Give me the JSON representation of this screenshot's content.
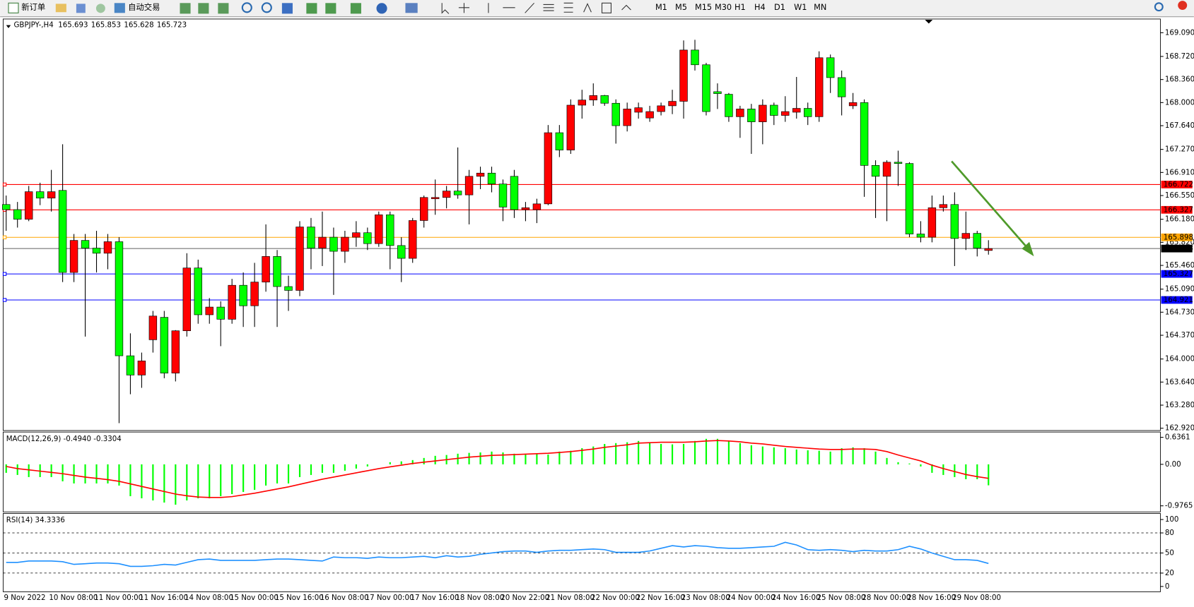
{
  "toolbar": {
    "new_order": "新订单",
    "auto_trading": "自动交易",
    "timeframes": [
      "M1",
      "M5",
      "M15",
      "M30",
      "H1",
      "H4",
      "D1",
      "W1",
      "MN"
    ]
  },
  "chart_data": [
    {
      "type": "candlestick",
      "title": "GBPJPY-,H4",
      "last_bar": [
        165.693,
        165.853,
        165.628,
        165.723
      ],
      "up_color": "#ff0000",
      "down_color": "#00ff00",
      "categories": [
        "9 Nov 2022",
        null,
        null,
        null,
        "10 Nov 08:00",
        null,
        null,
        null,
        "11 Nov 00:00",
        null,
        null,
        null,
        "11 Nov 16:00",
        null,
        null,
        null,
        "14 Nov 08:00",
        null,
        null,
        null,
        "15 Nov 00:00",
        null,
        null,
        null,
        "15 Nov 16:00",
        null,
        null,
        null,
        "16 Nov 08:00",
        null,
        null,
        null,
        "17 Nov 00:00",
        null,
        null,
        null,
        "17 Nov 16:00",
        null,
        null,
        null,
        "18 Nov 08:00",
        null,
        null,
        null,
        "20 Nov 22:00",
        null,
        null,
        null,
        "21 Nov 08:00",
        null,
        null,
        null,
        "22 Nov 00:00",
        null,
        null,
        null,
        "22 Nov 16:00",
        null,
        null,
        null,
        "23 Nov 08:00",
        null,
        null,
        null,
        "24 Nov 00:00",
        null,
        null,
        null,
        "24 Nov 16:00",
        null,
        null,
        null,
        "25 Nov 08:00",
        null,
        null,
        null,
        "28 Nov 00:00",
        null,
        null,
        null,
        "28 Nov 16:00",
        null,
        null,
        null,
        "29 Nov 08:00",
        null,
        null,
        null
      ],
      "open": [
        166.41,
        166.33,
        166.18,
        166.61,
        166.51,
        166.63,
        165.35,
        165.85,
        165.73,
        165.65,
        165.83,
        164.05,
        163.75,
        164.3,
        164.65,
        163.78,
        164.44,
        165.42,
        164.69,
        164.81,
        164.62,
        165.15,
        164.83,
        165.2,
        165.6,
        165.13,
        165.07,
        166.06,
        165.73,
        165.9,
        165.68,
        165.9,
        165.97,
        165.8,
        166.25,
        165.77,
        165.57,
        166.16,
        166.5,
        166.52,
        166.62,
        166.56,
        166.85,
        166.9,
        166.73,
        166.85,
        166.33,
        166.33,
        166.42,
        167.53,
        167.26,
        167.96,
        168.04,
        168.11,
        167.99,
        167.64,
        167.85,
        167.76,
        167.86,
        167.95,
        168.02,
        168.82,
        168.59,
        168.17,
        168.13,
        167.78,
        167.9,
        167.7,
        167.96,
        167.8,
        167.85,
        167.91,
        167.78,
        168.7,
        168.39,
        167.95,
        168.0,
        167.02,
        166.85,
        167.07,
        167.05,
        165.95,
        165.9,
        166.36,
        166.41,
        165.88,
        165.96,
        165.693
      ],
      "high": [
        166.55,
        166.45,
        166.7,
        166.75,
        166.95,
        167.35,
        165.95,
        165.95,
        166.0,
        165.95,
        165.9,
        164.4,
        164.1,
        164.75,
        164.75,
        164.45,
        165.65,
        165.55,
        164.95,
        164.9,
        165.25,
        165.35,
        165.5,
        166.1,
        165.7,
        165.3,
        166.15,
        166.2,
        166.3,
        166.05,
        166.0,
        166.15,
        166.05,
        166.3,
        166.3,
        165.9,
        166.2,
        166.55,
        166.8,
        166.7,
        167.3,
        166.95,
        167.0,
        167.0,
        166.8,
        166.95,
        166.45,
        166.5,
        167.65,
        167.65,
        168.05,
        168.2,
        168.3,
        168.12,
        168.05,
        168.0,
        168.0,
        167.95,
        168.0,
        168.2,
        168.97,
        168.98,
        168.62,
        168.3,
        168.15,
        167.95,
        167.98,
        168.05,
        168.0,
        168.1,
        168.4,
        168.0,
        168.8,
        168.75,
        168.5,
        168.15,
        168.05,
        167.1,
        167.1,
        167.25,
        167.07,
        166.15,
        166.55,
        166.55,
        166.6,
        166.3,
        166.0,
        165.853
      ],
      "low": [
        166.0,
        166.05,
        166.15,
        166.4,
        166.3,
        165.2,
        165.2,
        164.35,
        165.35,
        165.4,
        163.0,
        163.45,
        163.55,
        164.1,
        163.7,
        163.65,
        164.35,
        164.55,
        164.55,
        164.2,
        164.55,
        164.5,
        164.5,
        165.05,
        164.5,
        164.75,
        164.98,
        165.4,
        165.45,
        165.0,
        165.5,
        165.75,
        165.7,
        165.75,
        165.4,
        165.2,
        165.5,
        166.05,
        166.25,
        166.35,
        166.5,
        166.1,
        166.65,
        166.6,
        166.15,
        166.2,
        166.15,
        166.12,
        166.4,
        167.15,
        167.2,
        167.75,
        167.95,
        167.95,
        167.36,
        167.55,
        167.75,
        167.7,
        167.8,
        167.82,
        167.75,
        168.5,
        167.8,
        167.9,
        167.7,
        167.45,
        167.2,
        167.35,
        167.65,
        167.7,
        167.75,
        167.65,
        167.7,
        168.15,
        167.8,
        167.9,
        166.53,
        166.2,
        166.15,
        166.7,
        165.9,
        165.82,
        165.82,
        166.3,
        165.45,
        165.7,
        165.6,
        165.628
      ],
      "close": [
        166.33,
        166.18,
        166.61,
        166.51,
        166.61,
        165.35,
        165.85,
        165.73,
        165.65,
        165.83,
        164.05,
        163.75,
        163.97,
        164.67,
        163.78,
        164.44,
        165.42,
        164.69,
        164.81,
        164.62,
        165.15,
        164.83,
        165.2,
        165.6,
        165.13,
        165.07,
        166.06,
        165.73,
        165.9,
        165.68,
        165.9,
        165.97,
        165.8,
        166.25,
        165.77,
        165.57,
        166.16,
        166.52,
        166.52,
        166.62,
        166.56,
        166.85,
        166.9,
        166.73,
        166.37,
        166.33,
        166.36,
        166.42,
        167.53,
        167.26,
        167.96,
        168.04,
        168.11,
        167.99,
        167.64,
        167.9,
        167.92,
        167.86,
        167.95,
        168.02,
        168.82,
        168.59,
        167.86,
        168.14,
        167.78,
        167.9,
        167.7,
        167.96,
        167.8,
        167.86,
        167.91,
        167.78,
        168.7,
        168.39,
        168.09,
        168.0,
        167.02,
        166.85,
        167.07,
        167.05,
        165.95,
        165.9,
        166.36,
        166.41,
        165.88,
        165.96,
        165.73,
        165.723
      ],
      "ylim": [
        162.884,
        169.292
      ],
      "yticks": [
        {
          "value": 169.09,
          "label": "169.090"
        },
        {
          "value": 168.72,
          "label": "168.720"
        },
        {
          "value": 168.36,
          "label": "168.360"
        },
        {
          "value": 168.0,
          "label": "168.000"
        },
        {
          "value": 167.64,
          "label": "167.640"
        },
        {
          "value": 167.27,
          "label": "167.270"
        },
        {
          "value": 166.91,
          "label": "166.910"
        },
        {
          "value": 166.55,
          "label": "166.550"
        },
        {
          "value": 166.18,
          "label": "166.180"
        },
        {
          "value": 165.82,
          "label": "165.820"
        },
        {
          "value": 165.46,
          "label": "165.460"
        },
        {
          "value": 165.09,
          "label": "165.090"
        },
        {
          "value": 164.73,
          "label": "164.730"
        },
        {
          "value": 164.37,
          "label": "164.370"
        },
        {
          "value": 164.0,
          "label": "164.000"
        },
        {
          "value": 163.64,
          "label": "163.640"
        },
        {
          "value": 163.28,
          "label": "163.280"
        },
        {
          "value": 162.92,
          "label": "162.920"
        }
      ],
      "hlines": [
        {
          "value": 166.722,
          "color": "#ff0000"
        },
        {
          "value": 166.327,
          "color": "#ff0000"
        },
        {
          "value": 165.898,
          "color": "#ffa500"
        },
        {
          "value": 165.327,
          "color": "#0000ff"
        },
        {
          "value": 164.921,
          "color": "#0000ff"
        },
        {
          "value": 165.723,
          "color": "#000000"
        }
      ]
    },
    {
      "type": "macd",
      "title": "MACD(12,26,9) -0.4940 -0.3304",
      "color": "#00ff00",
      "signal_color": "#ff0000",
      "values": [
        -0.2,
        -0.25,
        -0.3,
        -0.3,
        -0.3,
        -0.4,
        -0.45,
        -0.45,
        -0.45,
        -0.45,
        -0.5,
        -0.75,
        -0.8,
        -0.85,
        -0.9,
        -0.95,
        -0.85,
        -0.8,
        -0.8,
        -0.75,
        -0.7,
        -0.65,
        -0.6,
        -0.5,
        -0.45,
        -0.45,
        -0.3,
        -0.25,
        -0.2,
        -0.2,
        -0.15,
        -0.1,
        -0.05,
        0,
        0.05,
        0.07,
        0.1,
        0.15,
        0.2,
        0.22,
        0.25,
        0.27,
        0.28,
        0.3,
        0.28,
        0.25,
        0.25,
        0.25,
        0.23,
        0.3,
        0.32,
        0.38,
        0.42,
        0.48,
        0.5,
        0.52,
        0.55,
        0.5,
        0.48,
        0.47,
        0.48,
        0.55,
        0.6,
        0.6,
        0.55,
        0.5,
        0.45,
        0.42,
        0.4,
        0.38,
        0.35,
        0.33,
        0.32,
        0.3,
        0.38,
        0.4,
        0.38,
        0.3,
        0.15,
        0.05,
        0.02,
        -0.05,
        -0.2,
        -0.25,
        -0.3,
        -0.35,
        -0.35,
        -0.494
      ],
      "signal": [
        -0.05,
        -0.1,
        -0.13,
        -0.16,
        -0.19,
        -0.22,
        -0.26,
        -0.3,
        -0.33,
        -0.36,
        -0.4,
        -0.46,
        -0.52,
        -0.58,
        -0.64,
        -0.7,
        -0.74,
        -0.77,
        -0.78,
        -0.78,
        -0.76,
        -0.72,
        -0.68,
        -0.63,
        -0.58,
        -0.53,
        -0.47,
        -0.41,
        -0.35,
        -0.3,
        -0.25,
        -0.2,
        -0.15,
        -0.1,
        -0.06,
        -0.02,
        0.02,
        0.05,
        0.08,
        0.11,
        0.14,
        0.17,
        0.19,
        0.21,
        0.22,
        0.23,
        0.24,
        0.25,
        0.26,
        0.28,
        0.3,
        0.33,
        0.36,
        0.4,
        0.43,
        0.46,
        0.5,
        0.51,
        0.52,
        0.52,
        0.52,
        0.53,
        0.55,
        0.56,
        0.55,
        0.53,
        0.5,
        0.48,
        0.45,
        0.42,
        0.4,
        0.38,
        0.36,
        0.35,
        0.35,
        0.36,
        0.36,
        0.35,
        0.3,
        0.22,
        0.15,
        0.08,
        -0.02,
        -0.1,
        -0.17,
        -0.24,
        -0.29,
        -0.3304
      ],
      "ylim": [
        -1.12,
        0.76
      ],
      "yticks": [
        0.6361,
        {
          "value": 0,
          "label": "0.00"
        },
        -0.9765
      ]
    },
    {
      "type": "rsi",
      "title": "RSI(14) 34.3336",
      "color": "#1e90ff",
      "values": [
        36,
        36,
        38,
        38,
        38,
        37,
        33,
        34,
        35,
        35,
        34,
        30,
        30,
        31,
        33,
        32,
        36,
        40,
        41,
        39,
        39,
        39,
        39,
        40,
        41,
        41,
        40,
        39,
        38,
        44,
        43,
        43,
        42,
        44,
        43,
        43,
        44,
        45,
        43,
        46,
        44,
        45,
        48,
        50,
        52,
        53,
        53,
        51,
        53,
        54,
        54,
        55,
        56,
        55,
        51,
        51,
        51,
        53,
        57,
        61,
        59,
        61,
        60,
        58,
        57,
        57,
        58,
        59,
        60,
        66,
        62,
        55,
        54,
        55,
        54,
        52,
        54,
        53,
        53,
        55,
        60,
        56,
        50,
        45,
        40,
        40,
        39,
        34.3336
      ],
      "ylim": [
        0,
        100
      ],
      "yticks": [
        100,
        80,
        50,
        20,
        0
      ],
      "levels": [
        80,
        50,
        20
      ]
    }
  ]
}
